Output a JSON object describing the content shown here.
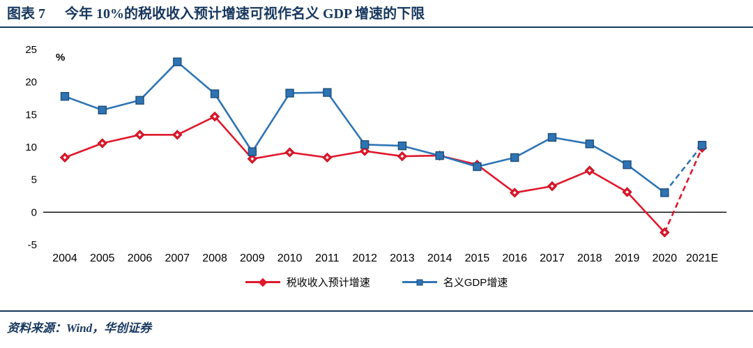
{
  "header": {
    "label": "图表 7",
    "title": "今年 10%的税收收入预计增速可视作名义 GDP 增速的下限"
  },
  "chart_data": {
    "type": "line",
    "title": "今年 10%的税收收入预计增速可视作名义 GDP 增速的下限",
    "unit_label": "%",
    "xlabel": "",
    "ylabel": "%",
    "ylim": [
      -5,
      25
    ],
    "yticks": [
      -5,
      0,
      5,
      10,
      15,
      20,
      25
    ],
    "grid": false,
    "legend_position": "bottom",
    "categories": [
      "2004",
      "2005",
      "2006",
      "2007",
      "2008",
      "2009",
      "2010",
      "2011",
      "2012",
      "2013",
      "2014",
      "2015",
      "2016",
      "2017",
      "2018",
      "2019",
      "2020",
      "2021E"
    ],
    "series": [
      {
        "name": "税收收入预计增速",
        "marker": "diamond",
        "color": "#e0182d",
        "border": "#c01020",
        "dashed_from": 16,
        "values": [
          8.4,
          10.6,
          11.9,
          11.9,
          14.7,
          8.2,
          9.2,
          8.4,
          9.4,
          8.6,
          8.7,
          7.3,
          3.0,
          4.0,
          6.4,
          3.1,
          -3.1,
          9.9
        ]
      },
      {
        "name": "名义GDP增速",
        "marker": "square",
        "color": "#2e74b5",
        "border": "#1f4e79",
        "dashed_from": 16,
        "values": [
          17.8,
          15.7,
          17.2,
          23.1,
          18.2,
          9.3,
          18.3,
          18.4,
          10.4,
          10.2,
          8.7,
          7.0,
          8.4,
          11.5,
          10.5,
          7.3,
          3.0,
          10.3
        ]
      }
    ]
  },
  "footer": {
    "source": "资料来源：Wind，华创证券"
  },
  "colors": {
    "accent_navy": "#17375E",
    "axis_black": "#000000"
  }
}
